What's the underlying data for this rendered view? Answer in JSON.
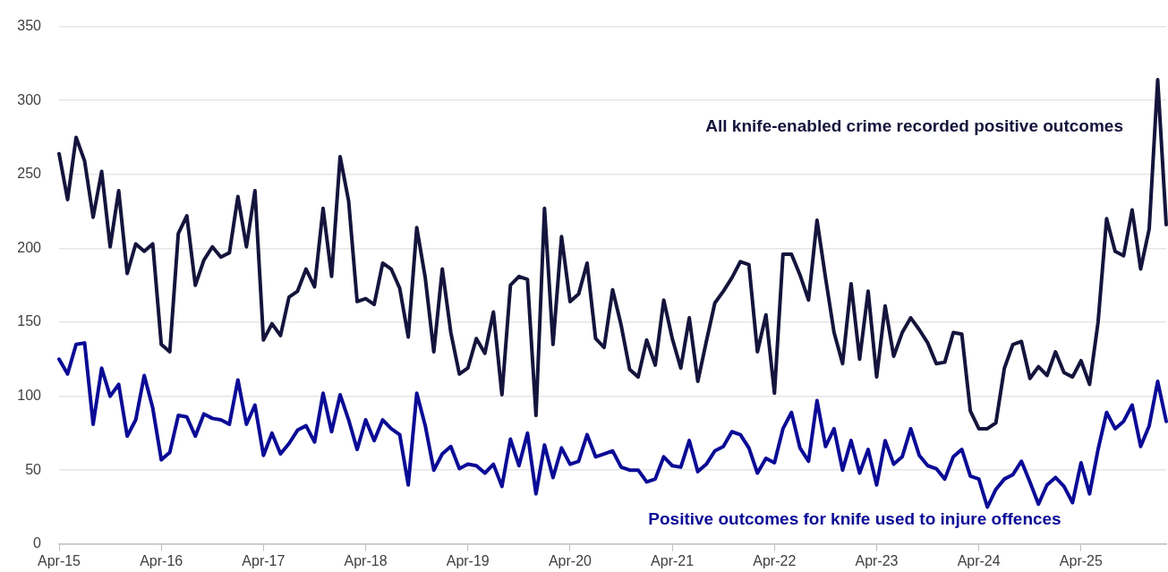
{
  "chart_data": {
    "type": "line",
    "categories": [
      "Apr-15",
      null,
      null,
      null,
      null,
      null,
      null,
      null,
      null,
      null,
      null,
      null,
      "Apr-16",
      null,
      null,
      null,
      null,
      null,
      null,
      null,
      null,
      null,
      null,
      null,
      "Apr-17",
      null,
      null,
      null,
      null,
      null,
      null,
      null,
      null,
      null,
      null,
      null,
      "Apr-18",
      null,
      null,
      null,
      null,
      null,
      null,
      null,
      null,
      null,
      null,
      null,
      "Apr-19",
      null,
      null,
      null,
      null,
      null,
      null,
      null,
      null,
      null,
      null,
      null,
      "Apr-20",
      null,
      null,
      null,
      null,
      null,
      null,
      null,
      null,
      null,
      null,
      null,
      "Apr-21",
      null,
      null,
      null,
      null,
      null,
      null,
      null,
      null,
      null,
      null,
      null,
      "Apr-22",
      null,
      null,
      null,
      null,
      null,
      null,
      null,
      null,
      null,
      null,
      null,
      "Apr-23",
      null,
      null,
      null,
      null,
      null,
      null,
      null,
      null,
      null,
      null,
      null,
      "Apr-24",
      null,
      null,
      null,
      null,
      null,
      null,
      null,
      null,
      null,
      null,
      null,
      "Apr-25",
      null,
      null,
      null,
      null,
      null,
      null,
      null,
      null,
      null,
      null
    ],
    "series": [
      {
        "name": "All knife-enabled crime recorded positive outcomes",
        "color": "#14143c",
        "values": [
          264,
          233,
          275,
          259,
          221,
          252,
          201,
          239,
          183,
          203,
          198,
          203,
          135,
          130,
          210,
          222,
          175,
          192,
          201,
          194,
          197,
          235,
          201,
          239,
          138,
          149,
          141,
          167,
          171,
          186,
          174,
          227,
          181,
          262,
          232,
          164,
          166,
          162,
          190,
          186,
          173,
          140,
          214,
          180,
          130,
          186,
          143,
          115,
          119,
          139,
          129,
          157,
          101,
          175,
          181,
          179,
          87,
          227,
          135,
          208,
          164,
          169,
          190,
          139,
          133,
          172,
          148,
          118,
          113,
          138,
          121,
          165,
          139,
          119,
          153,
          110,
          137,
          163,
          171,
          180,
          191,
          189,
          130,
          155,
          102,
          196,
          196,
          182,
          165,
          219,
          180,
          143,
          122,
          176,
          125,
          171,
          113,
          161,
          127,
          143,
          153,
          145,
          136,
          122,
          123,
          143,
          142,
          90,
          78,
          78,
          82,
          119,
          135,
          137,
          112,
          120,
          114,
          130,
          116,
          113,
          124,
          108,
          150,
          220,
          198,
          195,
          226,
          186,
          213,
          314,
          216
        ]
      },
      {
        "name": "Positive outcomes for knife used to injure offences",
        "color": "#0a0a96",
        "values": [
          125,
          115,
          135,
          136,
          81,
          119,
          100,
          108,
          73,
          84,
          114,
          92,
          57,
          62,
          87,
          86,
          73,
          88,
          85,
          84,
          81,
          111,
          81,
          94,
          60,
          75,
          61,
          68,
          77,
          80,
          69,
          102,
          76,
          101,
          84,
          64,
          84,
          70,
          84,
          78,
          74,
          40,
          102,
          80,
          50,
          61,
          66,
          51,
          54,
          53,
          48,
          54,
          39,
          71,
          53,
          75,
          34,
          67,
          45,
          65,
          54,
          56,
          74,
          59,
          61,
          63,
          52,
          50,
          50,
          42,
          44,
          59,
          53,
          52,
          70,
          49,
          54,
          63,
          66,
          76,
          74,
          65,
          48,
          58,
          55,
          78,
          89,
          65,
          56,
          97,
          66,
          78,
          50,
          70,
          48,
          64,
          40,
          70,
          54,
          59,
          78,
          60,
          53,
          51,
          44,
          59,
          64,
          46,
          44,
          25,
          37,
          44,
          47,
          56,
          42,
          27,
          40,
          45,
          39,
          28,
          55,
          34,
          64,
          89,
          78,
          83,
          94,
          66,
          80,
          110,
          83
        ]
      }
    ],
    "ylim": [
      0,
      350
    ],
    "yticks": [
      0,
      50,
      100,
      150,
      200,
      250,
      300,
      350
    ],
    "grid": "y",
    "legend": false
  }
}
